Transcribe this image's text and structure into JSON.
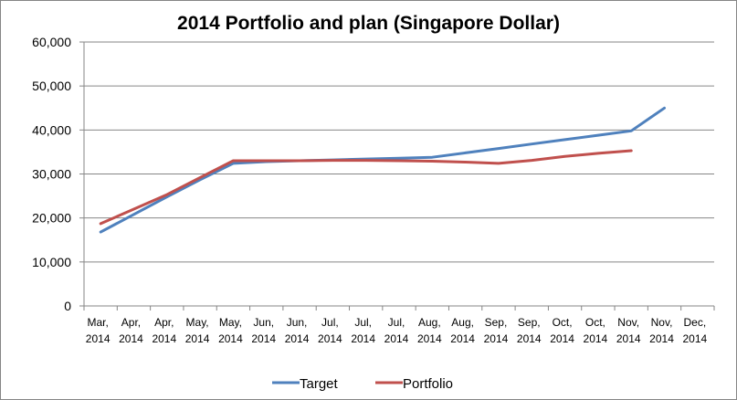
{
  "chart_data": {
    "type": "line",
    "title": "2014 Portfolio and plan  (Singapore Dollar)",
    "xlabel": "",
    "ylabel": "",
    "ylim": [
      0,
      60000
    ],
    "yticks": [
      "0",
      "10,000",
      "20,000",
      "30,000",
      "40,000",
      "50,000",
      "60,000"
    ],
    "grid": true,
    "legend_position": "bottom",
    "categories": [
      "Mar, 2014",
      "Apr, 2014",
      "Apr, 2014",
      "May, 2014",
      "May, 2014",
      "Jun, 2014",
      "Jun, 2014",
      "Jul, 2014",
      "Jul, 2014",
      "Jul, 2014",
      "Aug, 2014",
      "Aug, 2014",
      "Sep, 2014",
      "Sep, 2014",
      "Oct, 2014",
      "Oct, 2014",
      "Nov, 2014",
      "Nov, 2014",
      "Dec, 2014"
    ],
    "series": [
      {
        "name": "Target",
        "color": "#4f81bd",
        "values": [
          16800,
          20800,
          24800,
          28700,
          32400,
          32800,
          33000,
          33200,
          33400,
          33600,
          33800,
          34800,
          35800,
          36800,
          37800,
          38800,
          39800,
          45000,
          null
        ]
      },
      {
        "name": "Portfolio",
        "color": "#c0504d",
        "values": [
          18700,
          22000,
          25300,
          29200,
          33000,
          33000,
          33000,
          33100,
          33100,
          33000,
          32900,
          32700,
          32400,
          33100,
          34000,
          34700,
          35300,
          null,
          null
        ]
      }
    ]
  }
}
